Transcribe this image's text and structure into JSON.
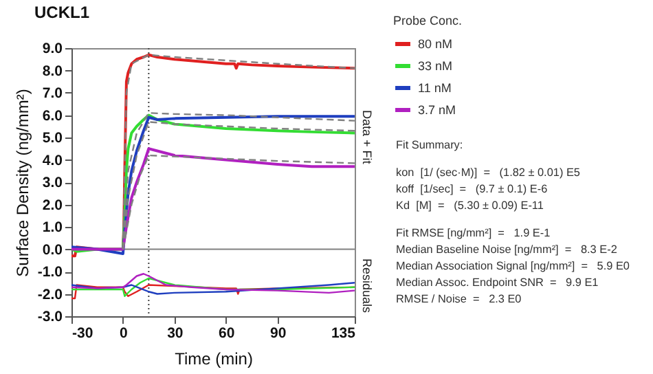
{
  "chart_data": {
    "type": "line",
    "title": "UCKL1",
    "xlabel": "Time (min)",
    "ylabel": "Surface Density (ng/mm²)",
    "legend_title": "Probe Conc.",
    "legend": "right",
    "xlim": [
      -30,
      135
    ],
    "xticks": [
      -30,
      0,
      30,
      60,
      90,
      135
    ],
    "ylim": [
      -3,
      9
    ],
    "yticks": [
      {
        "value": -3,
        "label": "-3.0"
      },
      {
        "value": -2,
        "label": "-2.0"
      },
      {
        "value": -1,
        "label": "-1.0"
      },
      {
        "value": 0,
        "label": "0.0"
      },
      {
        "value": 1,
        "label": "1.0"
      },
      {
        "value": 2,
        "label": "2.0"
      },
      {
        "value": 3,
        "label": "3.0"
      },
      {
        "value": 4,
        "label": "4.0"
      },
      {
        "value": 5,
        "label": "5.0"
      },
      {
        "value": 6,
        "label": "6.0"
      },
      {
        "value": 7,
        "label": "7.0"
      },
      {
        "value": 8,
        "label": "8.0"
      },
      {
        "value": 9,
        "label": "9.0"
      }
    ],
    "ref_lines": [
      {
        "axis": "y",
        "value": 0,
        "color": "#808080",
        "line_style": "solid"
      },
      {
        "axis": "x",
        "value": 15,
        "color": "#404040",
        "line_style": "dotted"
      }
    ],
    "series": [
      {
        "name": "80 nM",
        "color": "#e02020",
        "x": [
          -30,
          -28,
          -27,
          -15,
          0,
          0.5,
          1,
          2,
          3,
          5,
          8,
          12,
          15,
          20,
          30,
          45,
          60,
          65,
          66,
          67,
          75,
          90,
          110,
          135
        ],
        "values": [
          -0.3,
          -0.3,
          0.1,
          0,
          0,
          1,
          3.5,
          7.5,
          7.9,
          8.3,
          8.5,
          8.6,
          8.7,
          8.6,
          8.5,
          8.4,
          8.3,
          8.3,
          8.1,
          8.3,
          8.25,
          8.2,
          8.15,
          8.1
        ]
      },
      {
        "name": "33 nM",
        "color": "#33dd33",
        "x": [
          -30,
          -27,
          -15,
          0,
          1,
          2,
          3,
          5,
          8,
          12,
          15,
          20,
          30,
          45,
          60,
          90,
          110,
          135
        ],
        "values": [
          0,
          -0.1,
          0,
          0,
          1.5,
          3.5,
          4.5,
          5.2,
          5.5,
          5.8,
          6.0,
          5.8,
          5.6,
          5.5,
          5.4,
          5.3,
          5.25,
          5.2
        ]
      },
      {
        "name": "11 nM",
        "color": "#1f3fbf",
        "x": [
          -30,
          -15,
          0,
          1,
          3,
          5,
          8,
          12,
          15,
          20,
          30,
          60,
          90,
          135
        ],
        "values": [
          0.1,
          0,
          -0.2,
          0.8,
          2.5,
          3.5,
          4.4,
          5.3,
          5.9,
          5.8,
          5.85,
          5.9,
          5.95,
          5.95
        ]
      },
      {
        "name": "3.7 nM",
        "color": "#b020c0",
        "x": [
          -30,
          -15,
          0,
          2,
          5,
          8,
          12,
          15,
          20,
          30,
          45,
          60,
          90,
          110,
          135
        ],
        "values": [
          0,
          0,
          0,
          1,
          2.3,
          3.0,
          3.8,
          4.5,
          4.4,
          4.2,
          4.1,
          4.0,
          3.8,
          3.7,
          3.7
        ]
      },
      {
        "color": "#808080",
        "line_style": "dashed",
        "x": [
          0,
          2,
          5,
          15,
          30,
          60,
          90,
          135
        ],
        "values": [
          0,
          7,
          8.3,
          8.7,
          8.6,
          8.45,
          8.3,
          8.1
        ]
      },
      {
        "color": "#808080",
        "line_style": "dashed",
        "x": [
          0,
          3,
          8,
          15,
          30,
          60,
          90,
          135
        ],
        "values": [
          0,
          3.5,
          5.2,
          6.1,
          6.05,
          6.0,
          5.9,
          5.75
        ]
      },
      {
        "color": "#808080",
        "line_style": "dashed",
        "x": [
          0,
          3,
          8,
          15,
          30,
          60,
          90,
          135
        ],
        "values": [
          0,
          2.3,
          4.2,
          5.7,
          5.6,
          5.5,
          5.4,
          5.3
        ]
      },
      {
        "color": "#808080",
        "line_style": "dashed",
        "x": [
          0,
          5,
          10,
          15,
          30,
          60,
          90,
          135
        ],
        "values": [
          0,
          2.0,
          3.3,
          4.2,
          4.15,
          4.05,
          3.95,
          3.85
        ]
      },
      {
        "color": "#e02020",
        "x": [
          -30,
          -28,
          -27,
          -15,
          0,
          1,
          3,
          8,
          15,
          30,
          60,
          66,
          67,
          68,
          90,
          135
        ],
        "values": [
          -2.2,
          -2.2,
          -1.6,
          -1.7,
          -1.7,
          -1.9,
          -2.1,
          -1.9,
          -1.6,
          -1.65,
          -1.75,
          -1.75,
          -2.0,
          -1.8,
          -1.75,
          -1.7
        ]
      },
      {
        "color": "#33dd33",
        "x": [
          -30,
          -15,
          0,
          1,
          5,
          10,
          15,
          20,
          30,
          60,
          90,
          135
        ],
        "values": [
          -1.8,
          -1.8,
          -1.8,
          -2.1,
          -1.8,
          -1.5,
          -1.3,
          -1.4,
          -1.6,
          -1.8,
          -1.8,
          -1.7
        ]
      },
      {
        "color": "#1f3fbf",
        "x": [
          -30,
          -15,
          0,
          5,
          10,
          15,
          20,
          30,
          60,
          90,
          120,
          135
        ],
        "values": [
          -1.6,
          -1.75,
          -1.7,
          -1.6,
          -1.75,
          -1.9,
          -2.0,
          -1.95,
          -1.9,
          -1.75,
          -1.6,
          -1.5
        ]
      },
      {
        "color": "#b020c0",
        "x": [
          -30,
          -15,
          0,
          2,
          5,
          8,
          12,
          15,
          20,
          25,
          40,
          60,
          90,
          120,
          135
        ],
        "values": [
          -1.7,
          -1.75,
          -1.7,
          -1.6,
          -1.4,
          -1.2,
          -1.1,
          -1.2,
          -1.4,
          -1.6,
          -1.7,
          -1.8,
          -1.85,
          -1.95,
          -1.85
        ]
      }
    ],
    "annotations": [
      "Data + Fit",
      "Residuals",
      "Fit Summary:",
      "kon  [1/ (sec·M)]  =   (1.82 ± 0.01) E5",
      "koff  [1/sec]  =   (9.7 ± 0.1) E-6",
      "Kd  [M]  =   (5.30 ± 0.09) E-11",
      "Fit RMSE [ng/mm²]  =   1.9 E-1",
      "Median Baseline Noise [ng/mm²]  =   8.3 E-2",
      "Median Association Signal [ng/mm²]  =   5.9 E0",
      "Median Assoc. Endpoint SNR  =   9.9 E1",
      "RMSE / Noise  =   2.3 E0"
    ]
  }
}
